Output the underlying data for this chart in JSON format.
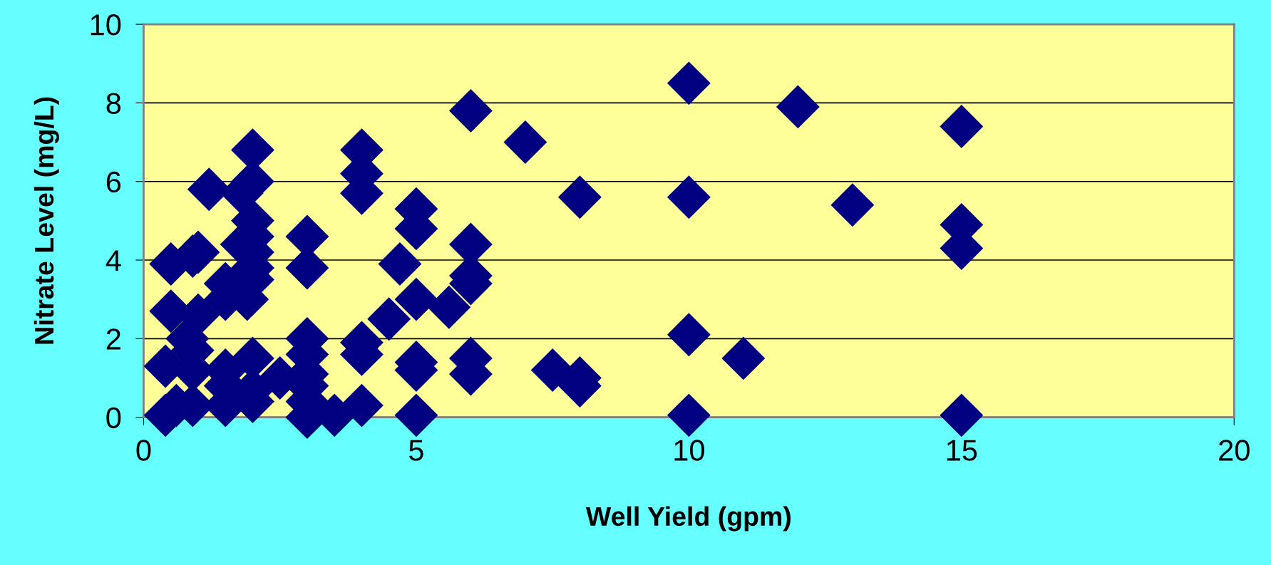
{
  "chart_data": {
    "type": "scatter",
    "xlabel": "Well Yield (gpm)",
    "ylabel": "Nitrate Level (mg/L)",
    "x": [
      0.4,
      0.4,
      0.5,
      0.5,
      0.6,
      0.8,
      0.9,
      0.9,
      1,
      0.9,
      1,
      0.9,
      1.2,
      1.5,
      1.5,
      1.5,
      1.5,
      1.5,
      1.8,
      1.8,
      1.9,
      2,
      2,
      2,
      2,
      2,
      2,
      2,
      2,
      2,
      2,
      2.5,
      3,
      3,
      3,
      3,
      3,
      3,
      3,
      3,
      3.5,
      4,
      4,
      4,
      4,
      4,
      4,
      4.5,
      4.7,
      5,
      5,
      5,
      5,
      5,
      5,
      5.6,
      6,
      6,
      6,
      6,
      6,
      6,
      7,
      7.5,
      8,
      8,
      8,
      10,
      10,
      10,
      10,
      11,
      12,
      13,
      15,
      15,
      15,
      15
    ],
    "values": [
      0.05,
      1.3,
      3.9,
      2.7,
      0.3,
      2.0,
      1.7,
      1.2,
      4.2,
      4.1,
      2.6,
      0.3,
      5.8,
      3.4,
      3.0,
      1.2,
      0.8,
      0.3,
      4.4,
      5.7,
      3.0,
      6.8,
      6.0,
      5.0,
      4.6,
      4.2,
      3.8,
      3.5,
      1.5,
      0.7,
      0.4,
      1.0,
      4.6,
      3.8,
      2.0,
      1.6,
      1.1,
      0.8,
      0.4,
      0.0,
      0.05,
      6.8,
      6.2,
      5.7,
      1.9,
      1.6,
      0.3,
      2.5,
      3.9,
      5.3,
      4.8,
      3.0,
      1.4,
      1.2,
      0.05,
      2.8,
      7.8,
      4.4,
      3.6,
      3.4,
      1.5,
      1.1,
      7.0,
      1.2,
      5.6,
      1.0,
      0.8,
      8.5,
      5.6,
      2.1,
      0.05,
      1.5,
      7.9,
      5.4,
      7.4,
      4.9,
      4.3,
      0.05
    ],
    "color": "#000080",
    "marker": "diamond",
    "xlim": [
      0,
      20
    ],
    "xticks": [
      0,
      5,
      10,
      15,
      20
    ],
    "ylim": [
      0,
      10
    ],
    "yticks": [
      0,
      2,
      4,
      6,
      8,
      10
    ],
    "grid": "y"
  }
}
